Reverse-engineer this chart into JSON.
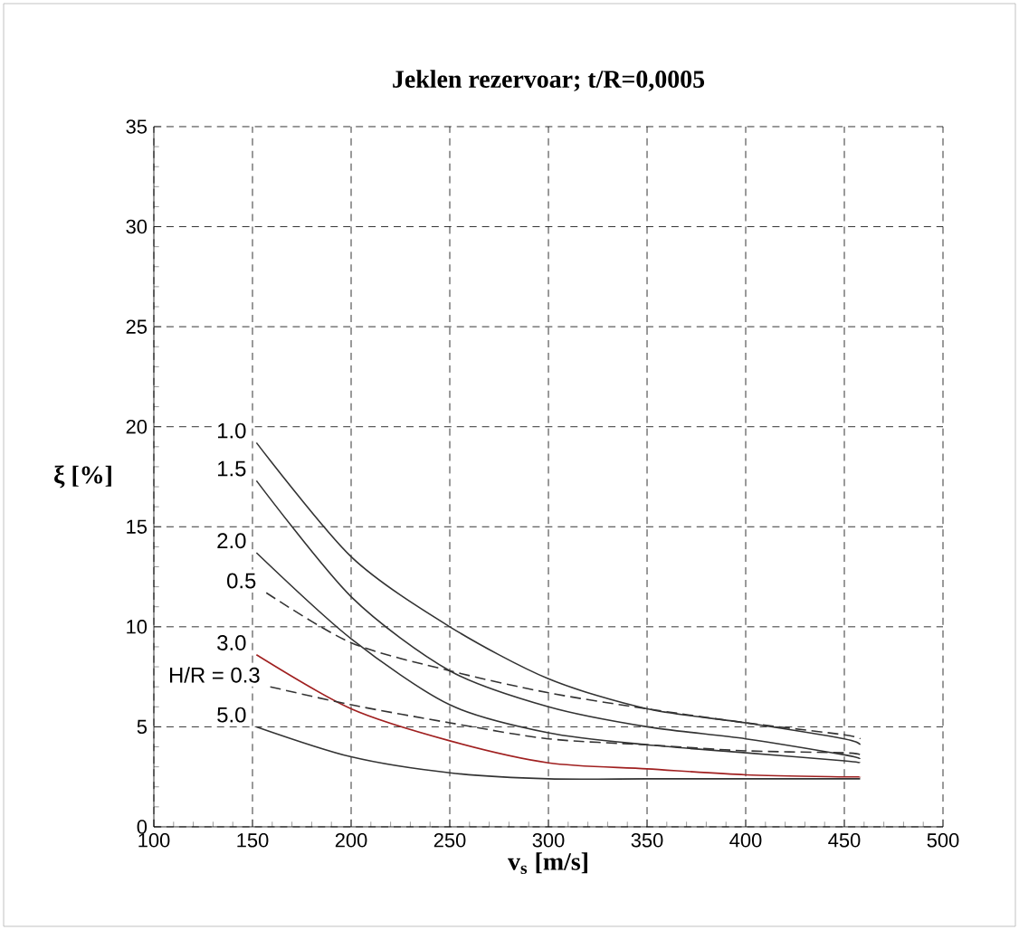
{
  "chart_data": {
    "type": "line",
    "title": "Jeklen rezervoar; t/R=0,0005",
    "xlabel": "v$_{s}$ [m/s]",
    "ylabel": "ξ [%]",
    "xlim": [
      100,
      500
    ],
    "ylim": [
      0,
      35
    ],
    "xticks": [
      100,
      150,
      200,
      250,
      300,
      350,
      400,
      450,
      500
    ],
    "yticks": [
      0,
      5,
      10,
      15,
      20,
      25,
      30,
      35
    ],
    "grid": true,
    "series": [
      {
        "name": "1.0",
        "color": "#333333",
        "line_style": "solid",
        "x": [
          152,
          200,
          250,
          300,
          350,
          400,
          450,
          458
        ],
        "values": [
          19.2,
          13.5,
          10,
          7.4,
          5.9,
          5.2,
          4.4,
          4.1
        ]
      },
      {
        "name": "1.5",
        "color": "#333333",
        "line_style": "solid",
        "x": [
          152,
          200,
          250,
          300,
          350,
          400,
          450,
          458
        ],
        "values": [
          17.3,
          11.5,
          7.8,
          6,
          5,
          4.4,
          3.6,
          3.4
        ]
      },
      {
        "name": "2.0",
        "color": "#333333",
        "line_style": "solid",
        "x": [
          152,
          200,
          250,
          300,
          350,
          400,
          450,
          458
        ],
        "values": [
          13.7,
          9.4,
          6.1,
          4.7,
          4.1,
          3.7,
          3.3,
          3.2
        ]
      },
      {
        "name": "0.5",
        "color": "#333333",
        "line_style": "dashed",
        "x": [
          157,
          200,
          250,
          300,
          350,
          400,
          450,
          458
        ],
        "values": [
          11.7,
          9.2,
          7.8,
          6.7,
          5.9,
          5.2,
          4.6,
          4.4
        ]
      },
      {
        "name": "3.0",
        "color": "#a02020",
        "line_style": "solid",
        "x": [
          152,
          200,
          250,
          300,
          350,
          400,
          450,
          458
        ],
        "values": [
          8.6,
          5.9,
          4.3,
          3.2,
          2.9,
          2.6,
          2.5,
          2.5
        ]
      },
      {
        "name": "H/R = 0.3",
        "color": "#333333",
        "line_style": "dashed",
        "x": [
          159,
          200,
          250,
          300,
          350,
          400,
          450,
          458
        ],
        "values": [
          7,
          6.1,
          5.2,
          4.4,
          4.1,
          3.8,
          3.7,
          3.6
        ]
      },
      {
        "name": "5.0",
        "color": "#333333",
        "line_style": "solid",
        "x": [
          152,
          200,
          250,
          300,
          350,
          400,
          450,
          458
        ],
        "values": [
          5,
          3.5,
          2.7,
          2.4,
          2.4,
          2.4,
          2.4,
          2.4
        ]
      }
    ]
  }
}
